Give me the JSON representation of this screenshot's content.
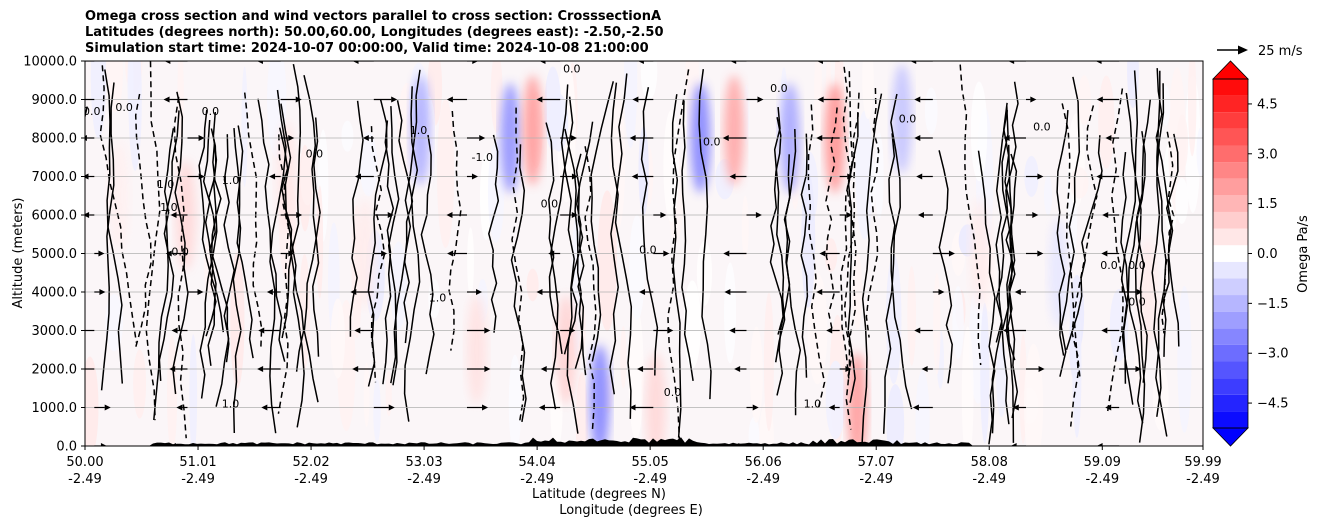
{
  "title": {
    "line1": "Omega cross section and wind vectors parallel to cross section: CrosssectionA",
    "line2": "Latitudes (degrees north): 50.00,60.00, Longitudes (degrees east): -2.50,-2.50",
    "line3": "Simulation start time: 2024-10-07 00:00:00, Valid time: 2024-10-08 21:00:00"
  },
  "chart_data": {
    "type": "heatmap",
    "xlabel_line1": "Latitude (degrees N)",
    "xlabel_line2": "Longitude (degrees E)",
    "ylabel": "Altitude (meters)",
    "xlim": [
      50.0,
      59.99
    ],
    "ylim": [
      0,
      10000
    ],
    "x_ticks": [
      {
        "lat": 50.0,
        "lat_label": "50.00",
        "lon_label": "-2.49"
      },
      {
        "lat": 51.01,
        "lat_label": "51.01",
        "lon_label": "-2.49"
      },
      {
        "lat": 52.02,
        "lat_label": "52.02",
        "lon_label": "-2.49"
      },
      {
        "lat": 53.03,
        "lat_label": "53.03",
        "lon_label": "-2.49"
      },
      {
        "lat": 54.04,
        "lat_label": "54.04",
        "lon_label": "-2.49"
      },
      {
        "lat": 55.05,
        "lat_label": "55.05",
        "lon_label": "-2.49"
      },
      {
        "lat": 56.06,
        "lat_label": "56.06",
        "lon_label": "-2.49"
      },
      {
        "lat": 57.07,
        "lat_label": "57.07",
        "lon_label": "-2.49"
      },
      {
        "lat": 58.08,
        "lat_label": "58.08",
        "lon_label": "-2.49"
      },
      {
        "lat": 59.09,
        "lat_label": "59.09",
        "lon_label": "-2.49"
      },
      {
        "lat": 59.99,
        "lat_label": "59.99",
        "lon_label": "-2.49"
      }
    ],
    "y_ticks": [
      {
        "value": 0,
        "label": "0.0"
      },
      {
        "value": 1000,
        "label": "1000.0"
      },
      {
        "value": 2000,
        "label": "2000.0"
      },
      {
        "value": 3000,
        "label": "3000.0"
      },
      {
        "value": 4000,
        "label": "4000.0"
      },
      {
        "value": 5000,
        "label": "5000.0"
      },
      {
        "value": 6000,
        "label": "6000.0"
      },
      {
        "value": 7000,
        "label": "7000.0"
      },
      {
        "value": 8000,
        "label": "8000.0"
      },
      {
        "value": 9000,
        "label": "9000.0"
      },
      {
        "value": 10000,
        "label": "10000.0"
      }
    ],
    "grid_y": true,
    "colorbar": {
      "label": "Omega Pa/s",
      "range": [
        -5.25,
        5.25
      ],
      "extend": "both",
      "tick_values": [
        4.5,
        3.0,
        1.5,
        0.0,
        -1.5,
        -3.0,
        -4.5
      ],
      "tick_labels": [
        "4.5",
        "3.0",
        "1.5",
        "0.0",
        "−1.5",
        "−3.0",
        "−4.5"
      ],
      "colormap": "bwr",
      "low_color": "#0000ff",
      "mid_color": "#ffffff",
      "high_color": "#ff0000"
    },
    "quiver_key": {
      "label": "25 m/s",
      "speed": 25
    },
    "omega_bands": [
      {
        "lat": 50.3,
        "alt": 6500,
        "value": 0.3
      },
      {
        "lat": 50.9,
        "alt": 6000,
        "value": 0.8
      },
      {
        "lat": 51.8,
        "alt": 7000,
        "value": 0.5
      },
      {
        "lat": 52.5,
        "alt": 5000,
        "value": 0.4
      },
      {
        "lat": 53.0,
        "alt": 8200,
        "value": -1.6
      },
      {
        "lat": 53.5,
        "alt": 2500,
        "value": 0.6
      },
      {
        "lat": 53.8,
        "alt": 8000,
        "value": -2.2
      },
      {
        "lat": 54.0,
        "alt": 8200,
        "value": 2.0
      },
      {
        "lat": 54.3,
        "alt": 2500,
        "value": 0.9
      },
      {
        "lat": 54.6,
        "alt": 1200,
        "value": -2.5
      },
      {
        "lat": 55.1,
        "alt": 1000,
        "value": 0.8
      },
      {
        "lat": 55.5,
        "alt": 8000,
        "value": -2.5
      },
      {
        "lat": 55.8,
        "alt": 8200,
        "value": 1.8
      },
      {
        "lat": 56.3,
        "alt": 8000,
        "value": -1.8
      },
      {
        "lat": 56.7,
        "alt": 8000,
        "value": 2.2
      },
      {
        "lat": 56.9,
        "alt": 1000,
        "value": 2.0
      },
      {
        "lat": 57.3,
        "alt": 8500,
        "value": -1.2
      },
      {
        "lat": 58.0,
        "alt": 5000,
        "value": 0.4
      },
      {
        "lat": 58.7,
        "alt": 4500,
        "value": -0.5
      },
      {
        "lat": 59.5,
        "alt": 4000,
        "value": 0.4
      }
    ],
    "contour_labels": [
      {
        "lat": 50.06,
        "alt": 8600,
        "text": "0.0"
      },
      {
        "lat": 50.35,
        "alt": 8700,
        "text": "0.0"
      },
      {
        "lat": 50.72,
        "alt": 6700,
        "text": "1.0"
      },
      {
        "lat": 50.75,
        "alt": 6100,
        "text": "1.0"
      },
      {
        "lat": 50.85,
        "alt": 4950,
        "text": "0.0"
      },
      {
        "lat": 51.3,
        "alt": 6800,
        "text": "1.0"
      },
      {
        "lat": 51.12,
        "alt": 8600,
        "text": "0.0"
      },
      {
        "lat": 52.05,
        "alt": 7500,
        "text": "0.0"
      },
      {
        "lat": 53.15,
        "alt": 3750,
        "text": "1.0"
      },
      {
        "lat": 52.98,
        "alt": 8100,
        "text": "1.0"
      },
      {
        "lat": 53.55,
        "alt": 7400,
        "text": "-1.0"
      },
      {
        "lat": 54.15,
        "alt": 6200,
        "text": "0.0"
      },
      {
        "lat": 54.35,
        "alt": 9700,
        "text": "0.0"
      },
      {
        "lat": 55.03,
        "alt": 5000,
        "text": "0.0"
      },
      {
        "lat": 55.6,
        "alt": 7800,
        "text": "0.0"
      },
      {
        "lat": 56.2,
        "alt": 9200,
        "text": "0.0"
      },
      {
        "lat": 57.35,
        "alt": 8400,
        "text": "0.0"
      },
      {
        "lat": 58.55,
        "alt": 8200,
        "text": "0.0"
      },
      {
        "lat": 59.15,
        "alt": 4600,
        "text": "0.0"
      },
      {
        "lat": 59.4,
        "alt": 3650,
        "text": "0.0"
      },
      {
        "lat": 55.25,
        "alt": 1300,
        "text": "0.0"
      },
      {
        "lat": 51.3,
        "alt": 1000,
        "text": "1.0"
      },
      {
        "lat": 56.5,
        "alt": 1000,
        "text": "1.0"
      },
      {
        "lat": 59.4,
        "alt": 4600,
        "text": "0.0"
      }
    ]
  }
}
